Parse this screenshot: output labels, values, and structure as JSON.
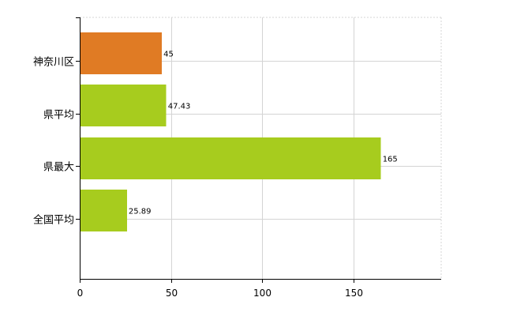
{
  "chart_data": {
    "type": "bar",
    "orientation": "horizontal",
    "title": "",
    "xlabel": "",
    "ylabel": "",
    "categories": [
      "神奈川区",
      "県平均",
      "県最大",
      "全国平均"
    ],
    "values": [
      45,
      47.43,
      165,
      25.89
    ],
    "data_labels": [
      "45",
      "47.43",
      "165",
      "25.89"
    ],
    "bar_colors": [
      "#e07b24",
      "#a7cc1e",
      "#a7cc1e",
      "#a7cc1e"
    ],
    "highlight_color": "#e07b24",
    "base_color": "#a7cc1e",
    "xlim": [
      0,
      200
    ],
    "x_ticks": [
      0,
      50,
      100,
      150
    ],
    "x_tick_labels": [
      "0",
      "50",
      "100",
      "150"
    ],
    "grid": "vertical",
    "legend": "none"
  }
}
